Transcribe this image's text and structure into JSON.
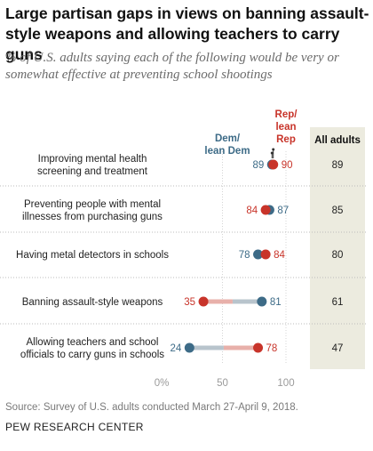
{
  "title": "Large partisan gaps in views on banning assault-style weapons and allowing teachers to carry guns",
  "subtitle": "% of U.S. adults saying each of the following would be very or somewhat effective at preventing school shootings",
  "source": "Source: Survey of U.S. adults conducted March 27-April 9, 2018.",
  "org": "PEW RESEARCH CENTER",
  "colors": {
    "dem": "#3d6b87",
    "rep": "#c8342a",
    "dem_bar": "#b8c4cc",
    "rep_bar": "#e8b0aa",
    "all_bg": "#ecebdf"
  },
  "chart_data": {
    "type": "dot-plot",
    "categories": [
      "Improving mental health\nscreening and treatment",
      "Preventing people with mental\nillnesses from purchasing guns",
      "Having metal detectors in schools",
      "Banning assault-style weapons",
      "Allowing teachers and school\nofficials to carry guns in schools"
    ],
    "series": [
      {
        "name": "Dem/\nlean Dem",
        "values": [
          89,
          87,
          78,
          81,
          24
        ]
      },
      {
        "name": "Rep/\nlean\nRep",
        "values": [
          90,
          84,
          84,
          35,
          78
        ]
      }
    ],
    "all_adults": {
      "label": "All adults",
      "values": [
        89,
        85,
        80,
        61,
        47
      ]
    },
    "xlim": [
      0,
      100
    ],
    "xticks": [
      "0%",
      "50",
      "100"
    ]
  }
}
